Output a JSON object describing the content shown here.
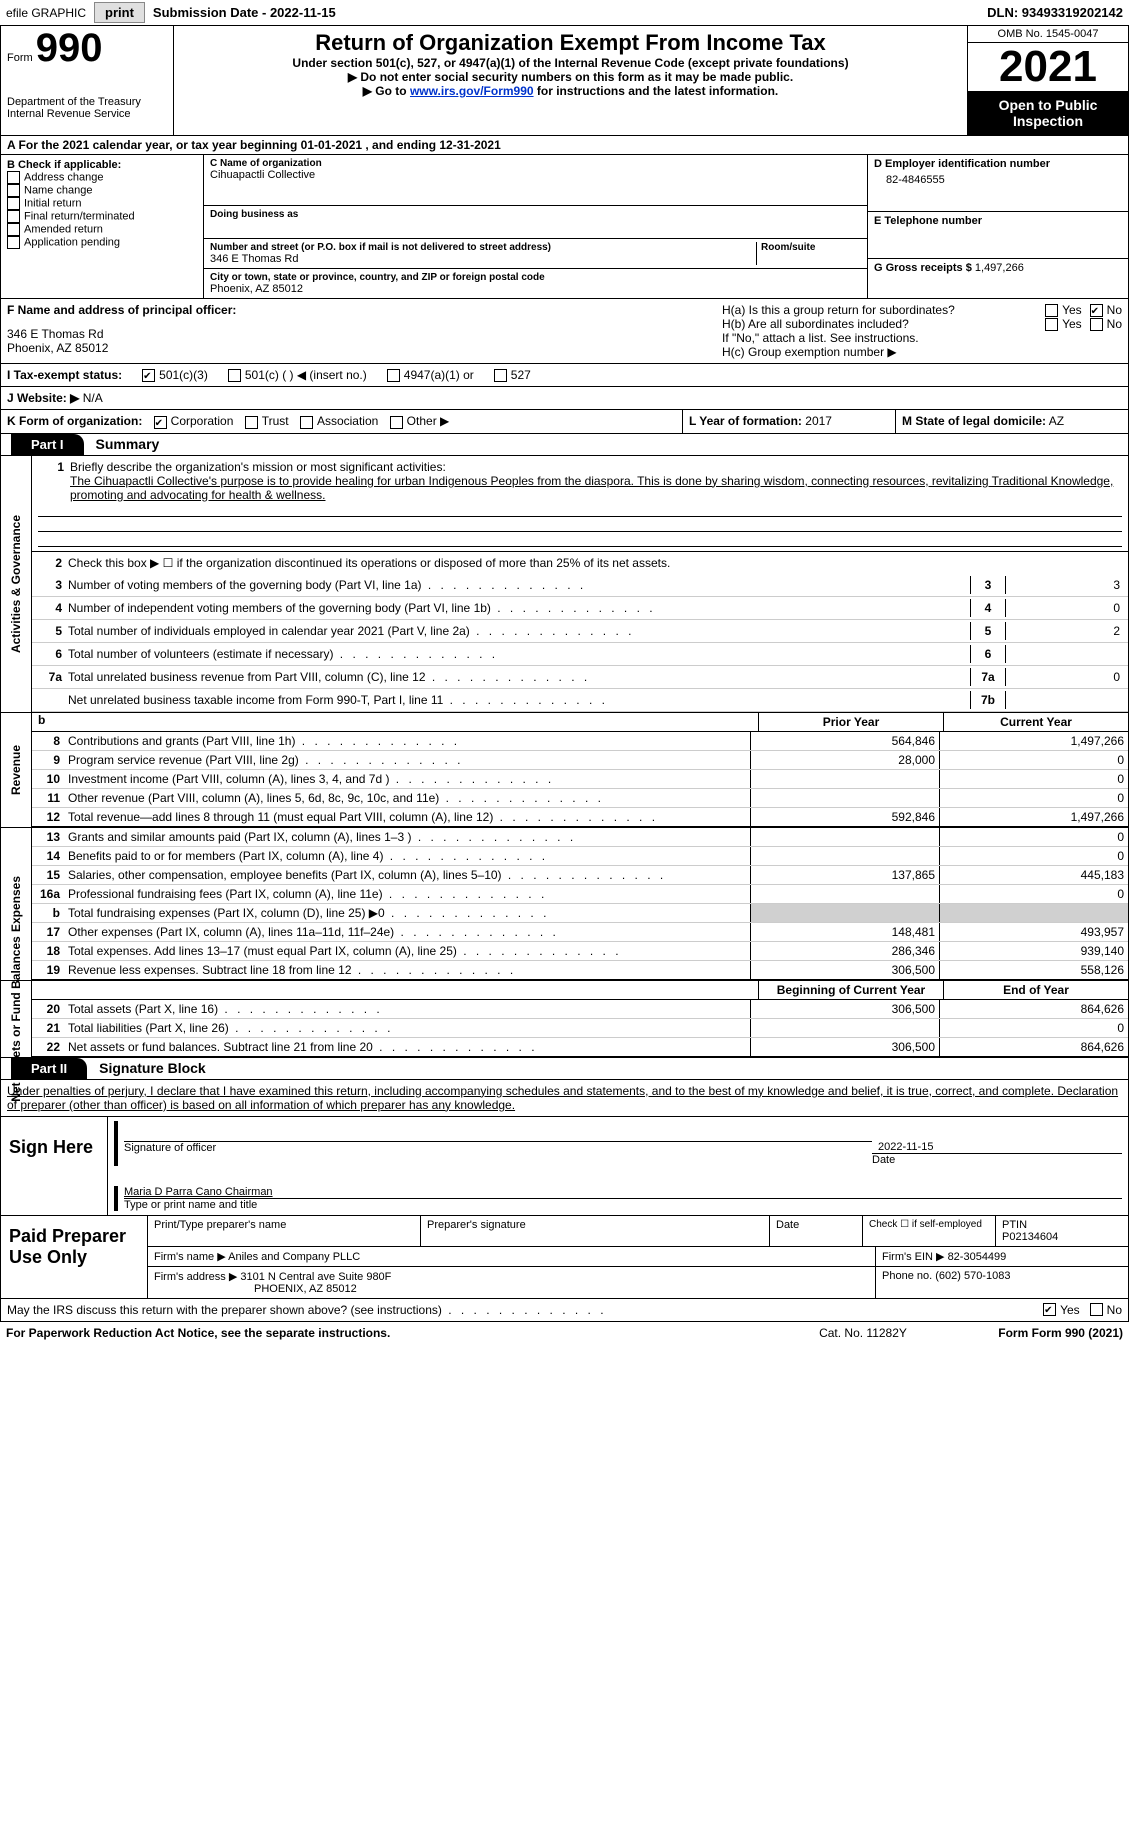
{
  "topbar": {
    "efile_label": "efile GRAPHIC",
    "print_btn": "print",
    "submission_label": "Submission Date - 2022-11-15",
    "dln_label": "DLN: 93493319202142"
  },
  "header": {
    "form_word": "Form",
    "form_number": "990",
    "dept": "Department of the Treasury",
    "irs": "Internal Revenue Service",
    "title": "Return of Organization Exempt From Income Tax",
    "subtitle": "Under section 501(c), 527, or 4947(a)(1) of the Internal Revenue Code (except private foundations)",
    "note1": "▶ Do not enter social security numbers on this form as it may be made public.",
    "note2_prefix": "▶ Go to ",
    "note2_link": "www.irs.gov/Form990",
    "note2_suffix": " for instructions and the latest information.",
    "omb": "OMB No. 1545-0047",
    "year": "2021",
    "open": "Open to Public Inspection"
  },
  "line_a": "A For the 2021 calendar year, or tax year beginning 01-01-2021    , and ending 12-31-2021",
  "section_b": {
    "header": "B Check if applicable:",
    "items": [
      "Address change",
      "Name change",
      "Initial return",
      "Final return/terminated",
      "Amended return",
      "Application pending"
    ]
  },
  "section_c": {
    "name_lbl": "C Name of organization",
    "name_val": "Cihuapactli Collective",
    "dba_lbl": "Doing business as",
    "addr_lbl": "Number and street (or P.O. box if mail is not delivered to street address)",
    "addr_val": "346 E Thomas Rd",
    "room_lbl": "Room/suite",
    "city_lbl": "City or town, state or province, country, and ZIP or foreign postal code",
    "city_val": "Phoenix, AZ  85012"
  },
  "section_d": {
    "lbl": "D Employer identification number",
    "val": "82-4846555"
  },
  "section_e": {
    "lbl": "E Telephone number"
  },
  "section_g": {
    "lbl": "G Gross receipts $",
    "val": "1,497,266"
  },
  "section_f": {
    "lbl": "F Name and address of principal officer:",
    "addr1": "346 E Thomas Rd",
    "addr2": "Phoenix, AZ  85012"
  },
  "section_h": {
    "ha": "H(a)  Is this a group return for subordinates?",
    "hb": "H(b)  Are all subordinates included?",
    "note": "If \"No,\" attach a list. See instructions.",
    "hc": "H(c)  Group exemption number ▶",
    "yes": "Yes",
    "no": "No"
  },
  "line_i": {
    "lbl": "I   Tax-exempt status:",
    "opt1": "501(c)(3)",
    "opt2": "501(c) (  ) ◀ (insert no.)",
    "opt3": "4947(a)(1) or",
    "opt4": "527"
  },
  "line_j": {
    "lbl": "J   Website: ▶",
    "val": "N/A"
  },
  "line_k": {
    "lbl": "K Form of organization:",
    "corp": "Corporation",
    "trust": "Trust",
    "assoc": "Association",
    "other": "Other ▶"
  },
  "line_l": {
    "lbl": "L Year of formation:",
    "val": "2017"
  },
  "line_m": {
    "lbl": "M State of legal domicile:",
    "val": "AZ"
  },
  "part1": {
    "tab": "Part I",
    "title": "Summary",
    "labels": {
      "activities": "Activities & Governance",
      "revenue": "Revenue",
      "expenses": "Expenses",
      "netassets": "Net Assets or Fund Balances"
    },
    "line1_lbl": "Briefly describe the organization's mission or most significant activities:",
    "line1_text": "The Cihuapactli Collective's purpose is to provide healing for urban Indigenous Peoples from the diaspora. This is done by sharing wisdom, connecting resources, revitalizing Traditional Knowledge, promoting and advocating for health & wellness.",
    "line2": "Check this box ▶ ☐  if the organization discontinued its operations or disposed of more than 25% of its net assets.",
    "lines_ag": [
      {
        "n": "3",
        "t": "Number of voting members of the governing body (Part VI, line 1a)",
        "box": "3",
        "val": "3"
      },
      {
        "n": "4",
        "t": "Number of independent voting members of the governing body (Part VI, line 1b)",
        "box": "4",
        "val": "0"
      },
      {
        "n": "5",
        "t": "Total number of individuals employed in calendar year 2021 (Part V, line 2a)",
        "box": "5",
        "val": "2"
      },
      {
        "n": "6",
        "t": "Total number of volunteers (estimate if necessary)",
        "box": "6",
        "val": ""
      },
      {
        "n": "7a",
        "t": "Total unrelated business revenue from Part VIII, column (C), line 12",
        "box": "7a",
        "val": "0"
      },
      {
        "n": "",
        "t": "Net unrelated business taxable income from Form 990-T, Part I, line 11",
        "box": "7b",
        "val": ""
      }
    ],
    "col_prior": "Prior Year",
    "col_current": "Current Year",
    "revenue_rows": [
      {
        "n": "8",
        "t": "Contributions and grants (Part VIII, line 1h)",
        "p": "564,846",
        "c": "1,497,266"
      },
      {
        "n": "9",
        "t": "Program service revenue (Part VIII, line 2g)",
        "p": "28,000",
        "c": "0"
      },
      {
        "n": "10",
        "t": "Investment income (Part VIII, column (A), lines 3, 4, and 7d )",
        "p": "",
        "c": "0"
      },
      {
        "n": "11",
        "t": "Other revenue (Part VIII, column (A), lines 5, 6d, 8c, 9c, 10c, and 11e)",
        "p": "",
        "c": "0"
      },
      {
        "n": "12",
        "t": "Total revenue—add lines 8 through 11 (must equal Part VIII, column (A), line 12)",
        "p": "592,846",
        "c": "1,497,266"
      }
    ],
    "expense_rows": [
      {
        "n": "13",
        "t": "Grants and similar amounts paid (Part IX, column (A), lines 1–3 )",
        "p": "",
        "c": "0"
      },
      {
        "n": "14",
        "t": "Benefits paid to or for members (Part IX, column (A), line 4)",
        "p": "",
        "c": "0"
      },
      {
        "n": "15",
        "t": "Salaries, other compensation, employee benefits (Part IX, column (A), lines 5–10)",
        "p": "137,865",
        "c": "445,183"
      },
      {
        "n": "16a",
        "t": "Professional fundraising fees (Part IX, column (A), line 11e)",
        "p": "",
        "c": "0"
      },
      {
        "n": "b",
        "t": "Total fundraising expenses (Part IX, column (D), line 25) ▶0",
        "p": "shade",
        "c": "shade"
      },
      {
        "n": "17",
        "t": "Other expenses (Part IX, column (A), lines 11a–11d, 11f–24e)",
        "p": "148,481",
        "c": "493,957"
      },
      {
        "n": "18",
        "t": "Total expenses. Add lines 13–17 (must equal Part IX, column (A), line 25)",
        "p": "286,346",
        "c": "939,140"
      },
      {
        "n": "19",
        "t": "Revenue less expenses. Subtract line 18 from line 12",
        "p": "306,500",
        "c": "558,126"
      }
    ],
    "col_begin": "Beginning of Current Year",
    "col_end": "End of Year",
    "asset_rows": [
      {
        "n": "20",
        "t": "Total assets (Part X, line 16)",
        "p": "306,500",
        "c": "864,626"
      },
      {
        "n": "21",
        "t": "Total liabilities (Part X, line 26)",
        "p": "",
        "c": "0"
      },
      {
        "n": "22",
        "t": "Net assets or fund balances. Subtract line 21 from line 20",
        "p": "306,500",
        "c": "864,626"
      }
    ]
  },
  "part2": {
    "tab": "Part II",
    "title": "Signature Block",
    "penalty": "Under penalties of perjury, I declare that I have examined this return, including accompanying schedules and statements, and to the best of my knowledge and belief, it is true, correct, and complete. Declaration of preparer (other than officer) is based on all information of which preparer has any knowledge.",
    "sign_here": "Sign Here",
    "sig_officer": "Signature of officer",
    "sig_date": "Date",
    "sig_date_val": "2022-11-15",
    "officer_name": "Maria D Parra Cano Chairman",
    "type_name": "Type or print name and title",
    "paid_prep": "Paid Preparer Use Only",
    "pp_name_lbl": "Print/Type preparer's name",
    "pp_sig_lbl": "Preparer's signature",
    "pp_date_lbl": "Date",
    "pp_check_lbl": "Check ☐ if self-employed",
    "pp_ptin_lbl": "PTIN",
    "pp_ptin_val": "P02134604",
    "firm_name_lbl": "Firm's name    ▶",
    "firm_name_val": "Aniles and Company PLLC",
    "firm_ein_lbl": "Firm's EIN ▶",
    "firm_ein_val": "82-3054499",
    "firm_addr_lbl": "Firm's address ▶",
    "firm_addr_val": "3101 N Central ave Suite 980F",
    "firm_city": "PHOENIX, AZ  85012",
    "phone_lbl": "Phone no.",
    "phone_val": "(602) 570-1083",
    "discuss": "May the IRS discuss this return with the preparer shown above? (see instructions)",
    "yes": "Yes",
    "no": "No"
  },
  "footer": {
    "paperwork": "For Paperwork Reduction Act Notice, see the separate instructions.",
    "cat": "Cat. No. 11282Y",
    "form": "Form 990 (2021)"
  }
}
